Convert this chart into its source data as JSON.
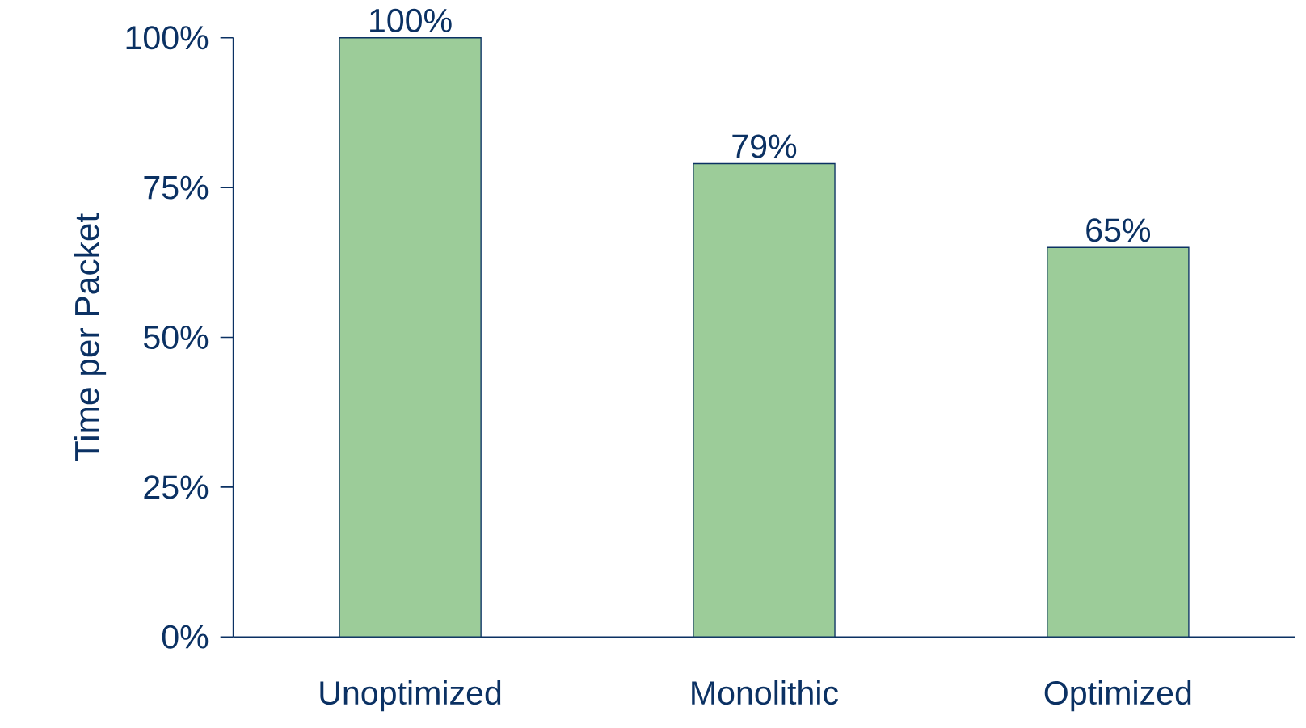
{
  "chart_data": {
    "type": "bar",
    "ylabel": "Time per Packet",
    "categories": [
      "Unoptimized",
      "Monolithic",
      "Optimized"
    ],
    "values": [
      100,
      79,
      65
    ],
    "value_labels": [
      "100%",
      "79%",
      "65%"
    ],
    "color": "#9ccc99",
    "ylim": [
      0,
      100
    ],
    "yticks": [
      {
        "value": 0,
        "label": "0%"
      },
      {
        "value": 25,
        "label": "25%"
      },
      {
        "value": 50,
        "label": "50%"
      },
      {
        "value": 75,
        "label": "75%"
      },
      {
        "value": 100,
        "label": "100%"
      }
    ],
    "grid": false
  }
}
